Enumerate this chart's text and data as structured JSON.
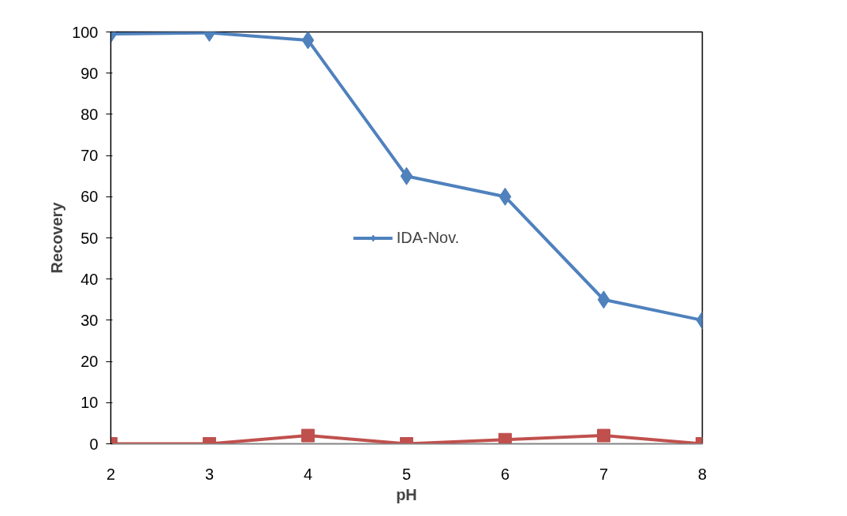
{
  "chart_data": {
    "type": "line",
    "xlabel": "pH",
    "ylabel": "Recovery",
    "x": [
      2,
      3,
      4,
      5,
      6,
      7,
      8
    ],
    "series": [
      {
        "name": "IDA-Nov.",
        "color": "#4f81bd",
        "marker": "diamond",
        "values": [
          99.5,
          99.8,
          98,
          65,
          60,
          35,
          30
        ]
      },
      {
        "color": "#c0504d",
        "marker": "square",
        "values": [
          0,
          0,
          2,
          0,
          1,
          2,
          0
        ]
      }
    ],
    "xlim": [
      2,
      8
    ],
    "ylim": [
      0,
      100
    ],
    "xticks": [
      2,
      3,
      4,
      5,
      6,
      7,
      8
    ],
    "yticks": [
      0,
      10,
      20,
      30,
      40,
      50,
      60,
      70,
      80,
      90,
      100
    ],
    "grid": false,
    "legend": "center",
    "line_style": "solid"
  }
}
